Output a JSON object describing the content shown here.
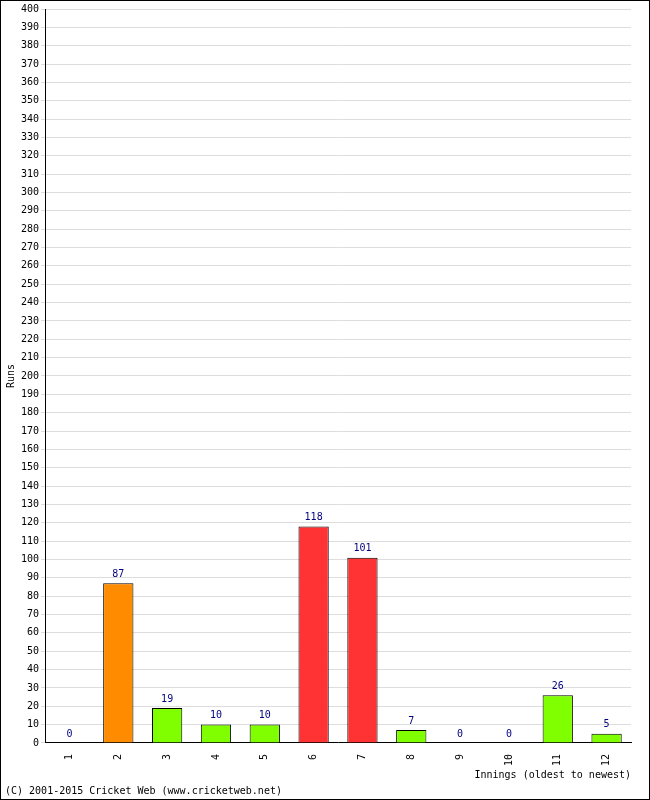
{
  "chart_data": {
    "type": "bar",
    "x_label": "Innings (oldest to newest)",
    "y_label": "Runs",
    "annotations": [
      "(C) 2001-2015 Cricket Web (www.cricketweb.net)"
    ],
    "categories": [
      "1",
      "2",
      "3",
      "4",
      "5",
      "6",
      "7",
      "8",
      "9",
      "10",
      "11",
      "12"
    ],
    "values": [
      0,
      87,
      19,
      10,
      10,
      118,
      101,
      7,
      0,
      0,
      26,
      5
    ],
    "colors": [
      "#80ff00",
      "#ff8c00",
      "#80ff00",
      "#80ff00",
      "#80ff00",
      "#ff3333",
      "#ff3333",
      "#80ff00",
      "#80ff00",
      "#80ff00",
      "#80ff00",
      "#80ff00"
    ],
    "ylim": [
      0,
      400
    ],
    "yticks": [
      0,
      10,
      20,
      30,
      40,
      50,
      60,
      70,
      80,
      90,
      100,
      110,
      120,
      130,
      140,
      150,
      160,
      170,
      180,
      190,
      200,
      210,
      220,
      230,
      240,
      250,
      260,
      270,
      280,
      290,
      300,
      310,
      320,
      330,
      340,
      350,
      360,
      370,
      380,
      390,
      400
    ],
    "grid": true,
    "data_labels": true
  }
}
